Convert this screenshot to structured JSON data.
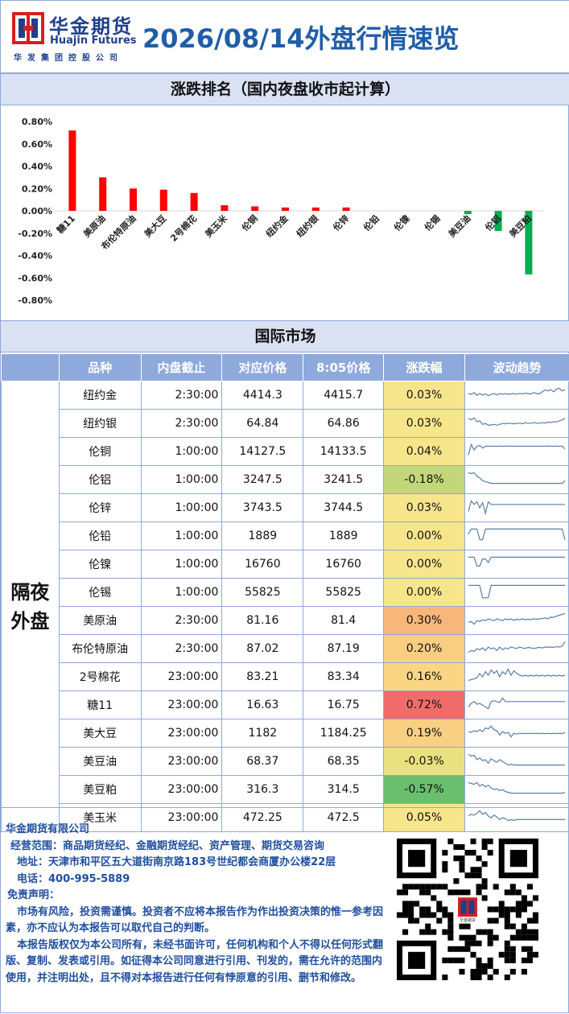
{
  "header": {
    "company_cn": "华金期货",
    "company_en": "Huajin Futures",
    "company_sub": "华发集团控股公司",
    "title": "2026/08/14外盘行情速览"
  },
  "ranking_section": {
    "title": "涨跌排名（国内夜盘收市起计算）"
  },
  "chart_data": {
    "type": "bar",
    "title": "",
    "categories": [
      "糖11",
      "美原油",
      "布伦特原油",
      "美大豆",
      "2号棉花",
      "美玉米",
      "伦铜",
      "纽约金",
      "纽约银",
      "伦锌",
      "伦铅",
      "伦镍",
      "伦锡",
      "美豆油",
      "伦铝",
      "美豆粕"
    ],
    "values": [
      0.72,
      0.3,
      0.2,
      0.19,
      0.16,
      0.05,
      0.04,
      0.03,
      0.03,
      0.03,
      0.0,
      0.0,
      0.0,
      -0.03,
      -0.18,
      -0.57
    ],
    "y_unit": "%",
    "ylim": [
      -0.8,
      0.8
    ],
    "yticks": [
      "0.80%",
      "0.60%",
      "0.40%",
      "0.20%",
      "0.00%",
      "-0.20%",
      "-0.40%",
      "-0.60%",
      "-0.80%"
    ],
    "colors": {
      "positive": "#ff0000",
      "negative": "#00b050"
    },
    "grid": false,
    "legend": "none"
  },
  "intl_section": {
    "title": "国际市场"
  },
  "table": {
    "headers": [
      "品种",
      "内盘截止",
      "对应价格",
      "8:05价格",
      "涨跌幅",
      "波动趋势"
    ],
    "group_label": "隔夜外盘",
    "rows": [
      {
        "name": "纽约金",
        "close": "2:30:00",
        "price": "4414.3",
        "price805": "4415.7",
        "change": "0.03%",
        "bg": "#f6e58a",
        "trend": [
          0.5,
          0.45,
          0.55,
          0.4,
          0.5,
          0.42,
          0.48,
          0.38,
          0.45,
          0.5,
          0.42,
          0.5,
          0.46,
          0.5,
          0.45,
          0.48,
          0.5,
          0.46,
          0.5,
          0.48,
          0.52,
          0.5,
          0.47,
          0.55,
          0.5,
          0.48,
          0.6,
          0.7,
          0.65,
          0.72,
          0.6,
          0.75,
          0.8,
          0.65,
          0.72
        ]
      },
      {
        "name": "纽约银",
        "close": "2:30:00",
        "price": "64.84",
        "price805": "64.86",
        "change": "0.03%",
        "bg": "#f6e58a",
        "trend": [
          0.7,
          0.6,
          0.72,
          0.5,
          0.55,
          0.35,
          0.4,
          0.3,
          0.32,
          0.35,
          0.3,
          0.35,
          0.4,
          0.38,
          0.42,
          0.4,
          0.38,
          0.4,
          0.42,
          0.38,
          0.45,
          0.4,
          0.42,
          0.45,
          0.42,
          0.4,
          0.45,
          0.42,
          0.48,
          0.45,
          0.5,
          0.48,
          0.55,
          0.6,
          0.7
        ]
      },
      {
        "name": "伦铜",
        "close": "1:00:00",
        "price": "14127.5",
        "price805": "14133.5",
        "change": "0.04%",
        "bg": "#f6e58a",
        "trend": [
          0.2,
          0.8,
          0.5,
          0.7,
          0.75,
          0.6,
          0.7,
          0.72,
          0.7,
          0.72,
          0.7,
          0.72,
          0.7,
          0.72,
          0.7,
          0.72,
          0.7,
          0.72,
          0.7,
          0.72,
          0.7,
          0.72,
          0.7,
          0.72,
          0.7,
          0.72,
          0.7,
          0.72,
          0.7,
          0.72,
          0.7,
          0.72,
          0.7,
          0.72,
          0.55
        ]
      },
      {
        "name": "伦铝",
        "close": "1:00:00",
        "price": "3247.5",
        "price805": "3241.5",
        "change": "-0.18%",
        "bg": "#c3d77a",
        "trend": [
          0.8,
          0.75,
          0.8,
          0.6,
          0.5,
          0.35,
          0.3,
          0.25,
          0.2,
          0.2,
          0.2,
          0.2,
          0.2,
          0.2,
          0.2,
          0.2,
          0.2,
          0.2,
          0.2,
          0.2,
          0.2,
          0.2,
          0.2,
          0.2,
          0.2,
          0.2,
          0.2,
          0.2,
          0.2,
          0.2,
          0.2,
          0.2,
          0.2,
          0.2,
          0.35
        ]
      },
      {
        "name": "伦锌",
        "close": "1:00:00",
        "price": "3743.5",
        "price805": "3744.5",
        "change": "0.03%",
        "bg": "#f6e58a",
        "trend": [
          0.2,
          0.8,
          0.6,
          0.75,
          0.4,
          0.7,
          0.1,
          0.75,
          0.6,
          0.6,
          0.6,
          0.6,
          0.6,
          0.6,
          0.6,
          0.6,
          0.6,
          0.6,
          0.6,
          0.6,
          0.6,
          0.6,
          0.6,
          0.6,
          0.6,
          0.6,
          0.6,
          0.6,
          0.6,
          0.6,
          0.6,
          0.6,
          0.6,
          0.6,
          0.6
        ]
      },
      {
        "name": "伦铅",
        "close": "1:00:00",
        "price": "1889",
        "price805": "1889",
        "change": "0.00%",
        "bg": "#f6e58a",
        "trend": [
          0.5,
          0.8,
          0.8,
          0.8,
          0.2,
          0.2,
          0.8,
          0.8,
          0.8,
          0.8,
          0.8,
          0.8,
          0.8,
          0.8,
          0.8,
          0.8,
          0.8,
          0.8,
          0.8,
          0.8,
          0.8,
          0.8,
          0.8,
          0.8,
          0.8,
          0.8,
          0.8,
          0.8,
          0.8,
          0.8,
          0.8,
          0.8,
          0.8,
          0.8,
          0.2
        ]
      },
      {
        "name": "伦镍",
        "close": "1:00:00",
        "price": "16760",
        "price805": "16760",
        "change": "0.00%",
        "bg": "#f6e58a",
        "trend": [
          0.8,
          0.8,
          0.8,
          0.3,
          0.3,
          0.7,
          0.7,
          0.5,
          0.8,
          0.8,
          0.8,
          0.8,
          0.8,
          0.8,
          0.8,
          0.8,
          0.8,
          0.8,
          0.8,
          0.8,
          0.8,
          0.8,
          0.8,
          0.8,
          0.8,
          0.8,
          0.8,
          0.8,
          0.8,
          0.8,
          0.8,
          0.8,
          0.8,
          0.8,
          0.8
        ]
      },
      {
        "name": "伦锡",
        "close": "1:00:00",
        "price": "55825",
        "price805": "55825",
        "change": "0.00%",
        "bg": "#f6e58a",
        "trend": [
          0.8,
          0.8,
          0.8,
          0.8,
          0.8,
          0.1,
          0.1,
          0.1,
          0.8,
          0.8,
          0.8,
          0.8,
          0.8,
          0.8,
          0.8,
          0.8,
          0.8,
          0.8,
          0.8,
          0.8,
          0.8,
          0.8,
          0.8,
          0.8,
          0.8,
          0.8,
          0.8,
          0.8,
          0.8,
          0.8,
          0.8,
          0.8,
          0.8,
          0.8,
          0.8
        ]
      },
      {
        "name": "美原油",
        "close": "2:30:00",
        "price": "81.16",
        "price805": "81.4",
        "change": "0.30%",
        "bg": "#f8b67a",
        "trend": [
          0.3,
          0.35,
          0.2,
          0.4,
          0.35,
          0.45,
          0.4,
          0.5,
          0.45,
          0.4,
          0.5,
          0.45,
          0.4,
          0.5,
          0.45,
          0.5,
          0.42,
          0.48,
          0.45,
          0.5,
          0.45,
          0.48,
          0.45,
          0.5,
          0.48,
          0.5,
          0.52,
          0.55,
          0.5,
          0.6,
          0.58,
          0.65,
          0.7,
          0.75,
          0.8
        ]
      },
      {
        "name": "布伦特原油",
        "close": "2:30:00",
        "price": "87.02",
        "price805": "87.19",
        "change": "0.20%",
        "bg": "#f9cd82",
        "trend": [
          0.2,
          0.3,
          0.25,
          0.4,
          0.35,
          0.45,
          0.3,
          0.5,
          0.4,
          0.45,
          0.3,
          0.5,
          0.35,
          0.45,
          0.4,
          0.5,
          0.45,
          0.42,
          0.5,
          0.45,
          0.42,
          0.48,
          0.45,
          0.42,
          0.45,
          0.48,
          0.45,
          0.5,
          0.48,
          0.5,
          0.48,
          0.52,
          0.5,
          0.55,
          0.8
        ]
      },
      {
        "name": "2号棉花",
        "close": "23:00:00",
        "price": "83.21",
        "price805": "83.34",
        "change": "0.16%",
        "bg": "#f9d584",
        "trend": [
          0.2,
          0.25,
          0.3,
          0.35,
          0.6,
          0.4,
          0.7,
          0.5,
          0.8,
          0.6,
          0.75,
          0.4,
          0.7,
          0.55,
          0.85,
          0.5,
          0.75,
          0.6,
          0.5,
          0.45,
          0.5,
          0.45,
          0.5,
          0.45,
          0.5,
          0.45,
          0.5,
          0.45,
          0.5,
          0.45,
          0.5,
          0.45,
          0.5,
          0.45,
          0.5
        ]
      },
      {
        "name": "糖11",
        "close": "23:00:00",
        "price": "16.63",
        "price805": "16.75",
        "change": "0.72%",
        "bg": "#f26b6b",
        "trend": [
          0.3,
          0.5,
          0.6,
          0.45,
          0.5,
          0.4,
          0.3,
          0.2,
          0.6,
          0.65,
          0.6,
          0.55,
          0.8,
          0.6,
          0.6,
          0.6,
          0.6,
          0.6,
          0.6,
          0.6,
          0.6,
          0.6,
          0.6,
          0.6,
          0.6,
          0.6,
          0.6,
          0.6,
          0.6,
          0.6,
          0.6,
          0.6,
          0.6,
          0.6,
          0.6
        ]
      },
      {
        "name": "美大豆",
        "close": "23:00:00",
        "price": "1182",
        "price805": "1184.25",
        "change": "0.19%",
        "bg": "#f9cf83",
        "trend": [
          0.5,
          0.45,
          0.55,
          0.5,
          0.6,
          0.5,
          0.7,
          0.65,
          0.8,
          0.6,
          0.55,
          0.3,
          0.5,
          0.4,
          0.45,
          0.2,
          0.4,
          0.35,
          0.4,
          0.38,
          0.4,
          0.38,
          0.4,
          0.38,
          0.4,
          0.38,
          0.4,
          0.38,
          0.4,
          0.38,
          0.4,
          0.38,
          0.4,
          0.38,
          0.45
        ]
      },
      {
        "name": "美豆油",
        "close": "23:00:00",
        "price": "68.37",
        "price805": "68.35",
        "change": "-0.03%",
        "bg": "#e9e17f",
        "trend": [
          0.8,
          0.7,
          0.75,
          0.5,
          0.6,
          0.45,
          0.5,
          0.3,
          0.55,
          0.45,
          0.35,
          0.5,
          0.4,
          0.3,
          0.2,
          0.25,
          0.2,
          0.2,
          0.2,
          0.2,
          0.2,
          0.2,
          0.2,
          0.2,
          0.2,
          0.2,
          0.2,
          0.2,
          0.2,
          0.2,
          0.2,
          0.2,
          0.2,
          0.2,
          0.2
        ]
      },
      {
        "name": "美豆粕",
        "close": "23:00:00",
        "price": "316.3",
        "price805": "314.5",
        "change": "-0.57%",
        "bg": "#6abf6e",
        "trend": [
          0.8,
          0.75,
          0.7,
          0.8,
          0.6,
          0.7,
          0.55,
          0.65,
          0.5,
          0.4,
          0.45,
          0.35,
          0.4,
          0.3,
          0.25,
          0.2,
          0.2,
          0.2,
          0.2,
          0.2,
          0.2,
          0.2,
          0.2,
          0.2,
          0.2,
          0.2,
          0.2,
          0.2,
          0.2,
          0.2,
          0.2,
          0.2,
          0.2,
          0.2,
          0.25
        ]
      },
      {
        "name": "美玉米",
        "close": "23:00:00",
        "price": "472.25",
        "price805": "472.5",
        "change": "0.05%",
        "bg": "#f6e58a",
        "trend": [
          0.5,
          0.6,
          0.55,
          0.65,
          0.8,
          0.6,
          0.7,
          0.5,
          0.4,
          0.55,
          0.45,
          0.3,
          0.4,
          0.35,
          0.25,
          0.3,
          0.25,
          0.3,
          0.3,
          0.3,
          0.3,
          0.3,
          0.3,
          0.3,
          0.3,
          0.3,
          0.3,
          0.3,
          0.3,
          0.3,
          0.3,
          0.3,
          0.3,
          0.3,
          0.3
        ]
      }
    ]
  },
  "footer": {
    "company": "华金期货有限公司",
    "scope": "经营范围：商品期货经纪、金融期货经纪、资产管理、期货交易咨询",
    "address": "地址：天津市和平区五大道街南京路183号世纪都会商厦办公楼22层",
    "phone": "电话：400-995-5889",
    "disclaimer_title": "免责声明：",
    "disclaimer_1": "市场有风险，投资需谨慎。投资者不应将本报告作为作出投资决策的惟一参考因素，亦不应认为本报告可以取代自己的判断。",
    "disclaimer_2": "本报告版权仅为本公司所有，未经书面许可，任何机构和个人不得以任何形式翻版、复制、发表或引用。如征得本公司同意进行引用、刊发的，需在允许的范围内使用，并注明出处，且不得对本报告进行任何有悖原意的引用、删节和修改。",
    "qr_caption": "华金期货"
  }
}
